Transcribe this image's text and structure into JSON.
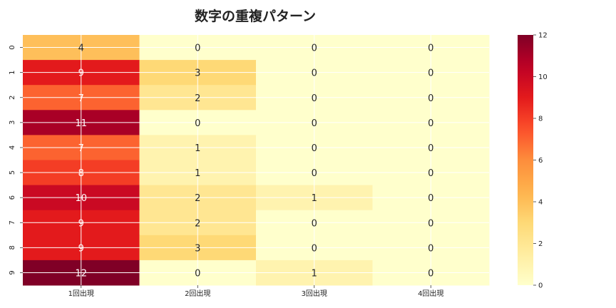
{
  "chart_data": {
    "type": "heatmap",
    "title": "数字の重複パターン",
    "xlabel": "",
    "ylabel": "",
    "x_categories": [
      "1回出現",
      "2回出現",
      "3回出現",
      "4回出現"
    ],
    "y_categories": [
      "0",
      "1",
      "2",
      "3",
      "4",
      "5",
      "6",
      "7",
      "8",
      "9"
    ],
    "values": [
      [
        4,
        0,
        0,
        0
      ],
      [
        9,
        3,
        0,
        0
      ],
      [
        7,
        2,
        0,
        0
      ],
      [
        11,
        0,
        0,
        0
      ],
      [
        7,
        1,
        0,
        0
      ],
      [
        8,
        1,
        0,
        0
      ],
      [
        10,
        2,
        1,
        0
      ],
      [
        9,
        2,
        0,
        0
      ],
      [
        9,
        3,
        0,
        0
      ],
      [
        12,
        0,
        1,
        0
      ]
    ],
    "colorbar": {
      "min": 0,
      "max": 12,
      "ticks": [
        0,
        2,
        4,
        6,
        8,
        10,
        12
      ],
      "colormap": "YlOrRd"
    },
    "grid": true
  }
}
